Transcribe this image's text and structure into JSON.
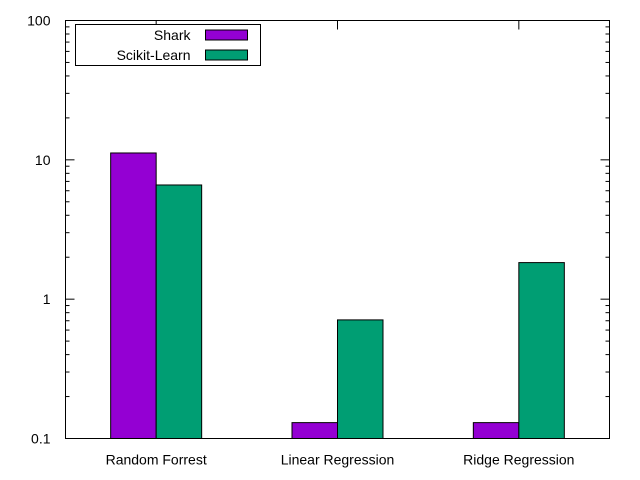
{
  "chart_data": {
    "type": "bar",
    "title": "",
    "xlabel": "",
    "ylabel": "",
    "yscale": "log",
    "ylim": [
      0.1,
      100
    ],
    "y_major_ticks": [
      0.1,
      1,
      10,
      100
    ],
    "y_tick_labels": [
      "0.1",
      "1",
      "10",
      "100"
    ],
    "categories": [
      "Random Forrest",
      "Linear Regression",
      "Ridge Regression"
    ],
    "series": [
      {
        "name": "Shark",
        "color": "#9400d3",
        "values": [
          11.2,
          0.13,
          0.13
        ]
      },
      {
        "name": "Scikit-Learn",
        "color": "#009e73",
        "values": [
          6.6,
          0.71,
          1.83
        ]
      }
    ],
    "legend_position": "top-left",
    "grid": false
  }
}
